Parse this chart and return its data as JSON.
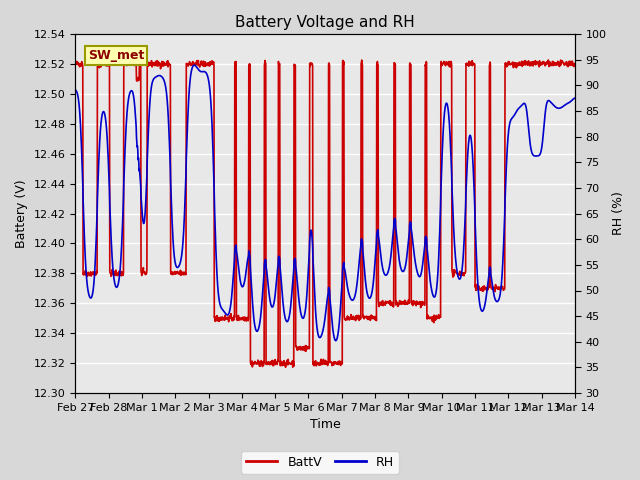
{
  "title": "Battery Voltage and RH",
  "xlabel": "Time",
  "ylabel_left": "Battery (V)",
  "ylabel_right": "RH (%)",
  "ylim_left": [
    12.3,
    12.54
  ],
  "ylim_right": [
    30,
    100
  ],
  "yticks_left": [
    12.3,
    12.32,
    12.34,
    12.36,
    12.38,
    12.4,
    12.42,
    12.44,
    12.46,
    12.48,
    12.5,
    12.52,
    12.54
  ],
  "yticks_right": [
    30,
    35,
    40,
    45,
    50,
    55,
    60,
    65,
    70,
    75,
    80,
    85,
    90,
    95,
    100
  ],
  "xtick_labels": [
    "Feb 27",
    "Feb 28",
    "Mar 1",
    "Mar 2",
    "Mar 3",
    "Mar 4",
    "Mar 5",
    "Mar 6",
    "Mar 7",
    "Mar 8",
    "Mar 9",
    "Mar 10",
    "Mar 11",
    "Mar 12",
    "Mar 13",
    "Mar 14"
  ],
  "color_battv": "#cc0000",
  "color_rh": "#0000cc",
  "legend_label_battv": "BattV",
  "legend_label_rh": "RH",
  "annotation_text": "SW_met",
  "bg_color": "#e8e8e8",
  "title_fontsize": 11,
  "axis_fontsize": 9,
  "tick_fontsize": 8,
  "line_width": 1.2
}
